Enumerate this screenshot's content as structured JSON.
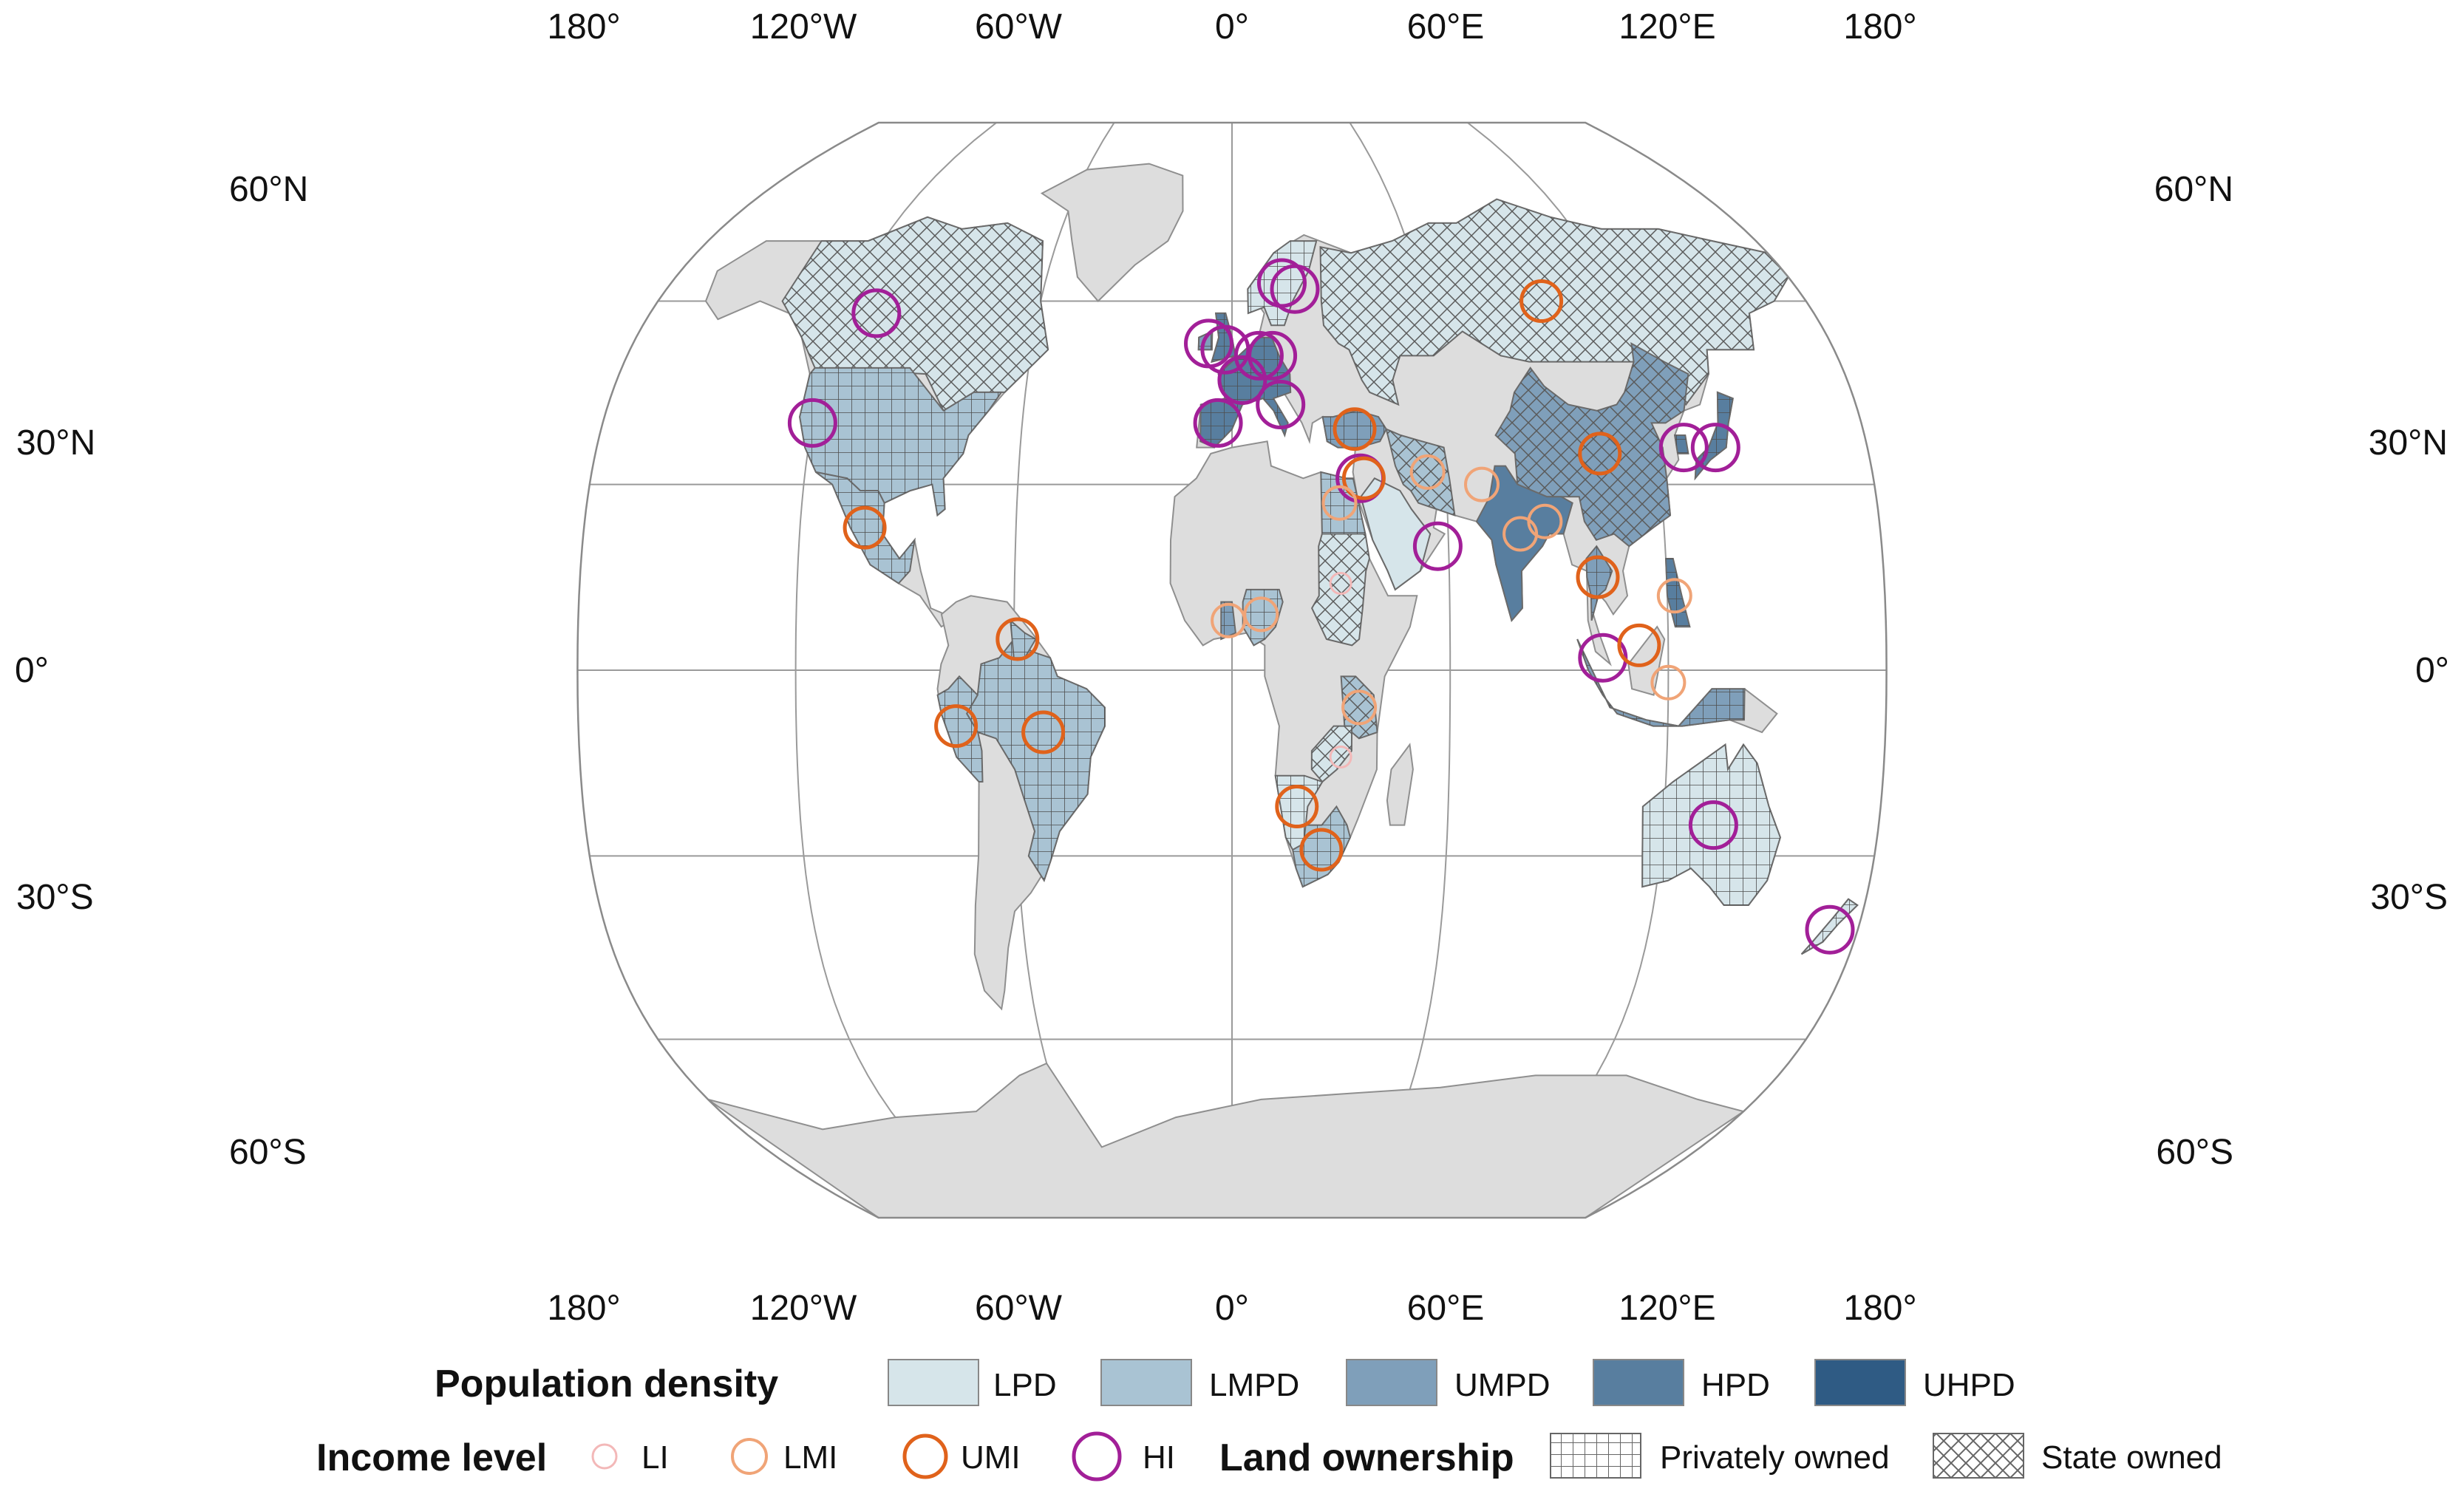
{
  "graticule_labels": {
    "top": [
      "180°",
      "120°W",
      "60°W",
      "0°",
      "60°E",
      "120°E",
      "180°"
    ],
    "bottom": [
      "180°",
      "120°W",
      "60°W",
      "0°",
      "60°E",
      "120°E",
      "180°"
    ],
    "left": [
      "60°N",
      "30°N",
      "0°",
      "30°S",
      "60°S"
    ],
    "right": [
      "60°N",
      "30°N",
      "0°",
      "30°S",
      "60°S"
    ]
  },
  "legend": {
    "density_title": "Population density",
    "density_items": [
      {
        "label": "LPD",
        "color": "#d6e5ea"
      },
      {
        "label": "LMPD",
        "color": "#a9c3d3"
      },
      {
        "label": "UMPD",
        "color": "#7f9fba"
      },
      {
        "label": "HPD",
        "color": "#587e9f"
      },
      {
        "label": "UHPD",
        "color": "#2f5b84"
      }
    ],
    "income_title": "Income level",
    "income_items": [
      {
        "label": "LI",
        "color": "#f3b8b8"
      },
      {
        "label": "LMI",
        "color": "#f0a477"
      },
      {
        "label": "UMI",
        "color": "#e0621b"
      },
      {
        "label": "HI",
        "color": "#a21f98"
      }
    ],
    "ownership_title": "Land ownership",
    "ownership_items": [
      {
        "label": "Privately owned",
        "pattern": "grid"
      },
      {
        "label": "State owned",
        "pattern": "cross"
      }
    ]
  },
  "countries": [
    {
      "name": "Canada",
      "density": "LPD",
      "ownership": "State owned"
    },
    {
      "name": "United States",
      "density": "LMPD",
      "ownership": "Privately owned"
    },
    {
      "name": "Mexico",
      "density": "LMPD",
      "ownership": "Privately owned"
    },
    {
      "name": "Brazil",
      "density": "LMPD",
      "ownership": "Privately owned"
    },
    {
      "name": "Peru",
      "density": "LMPD",
      "ownership": "Privately owned"
    },
    {
      "name": "Russia",
      "density": "LPD",
      "ownership": "State owned"
    },
    {
      "name": "China",
      "density": "UMPD",
      "ownership": "State owned"
    },
    {
      "name": "India",
      "density": "HPD",
      "ownership": "Privately owned"
    },
    {
      "name": "Australia",
      "density": "LPD",
      "ownership": "Privately owned"
    },
    {
      "name": "Sudan",
      "density": "LPD",
      "ownership": "State owned"
    },
    {
      "name": "Egypt",
      "density": "LMPD",
      "ownership": "Privately owned"
    },
    {
      "name": "Nigeria",
      "density": "LMPD",
      "ownership": "Privately owned"
    },
    {
      "name": "Tanzania",
      "density": "LMPD",
      "ownership": "State owned"
    },
    {
      "name": "South Africa",
      "density": "LMPD",
      "ownership": "Privately owned"
    },
    {
      "name": "Namibia",
      "density": "LPD",
      "ownership": "Privately owned"
    },
    {
      "name": "Iran",
      "density": "LMPD",
      "ownership": "State owned"
    },
    {
      "name": "Turkey",
      "density": "UMPD",
      "ownership": "Privately owned"
    },
    {
      "name": "Indonesia",
      "density": "UMPD",
      "ownership": "Privately owned"
    },
    {
      "name": "Thailand",
      "density": "UMPD",
      "ownership": "Privately owned"
    },
    {
      "name": "Japan",
      "density": "HPD",
      "ownership": "Privately owned"
    },
    {
      "name": "South Korea",
      "density": "HPD",
      "ownership": "Privately owned"
    },
    {
      "name": "New Zealand",
      "density": "LPD",
      "ownership": "Privately owned"
    },
    {
      "name": "Western Europe",
      "density": "HPD",
      "ownership": "Privately owned"
    },
    {
      "name": "Scandinavia",
      "density": "LPD",
      "ownership": "Privately owned"
    }
  ],
  "income_markers": [
    {
      "lon": -110,
      "lat": 58,
      "level": "HI"
    },
    {
      "lon": -120,
      "lat": 40,
      "level": "HI"
    },
    {
      "lon": -102,
      "lat": 23,
      "level": "UMI"
    },
    {
      "lon": -59,
      "lat": 5,
      "level": "UMI"
    },
    {
      "lon": -76,
      "lat": -9,
      "level": "UMI"
    },
    {
      "lon": -52,
      "lat": -10,
      "level": "UMI"
    },
    {
      "lon": -2,
      "lat": 52,
      "level": "HI"
    },
    {
      "lon": -7,
      "lat": 53,
      "level": "HI"
    },
    {
      "lon": 8,
      "lat": 51,
      "level": "HI"
    },
    {
      "lon": 12,
      "lat": 51,
      "level": "HI"
    },
    {
      "lon": 3,
      "lat": 47,
      "level": "HI"
    },
    {
      "lon": -4,
      "lat": 40,
      "level": "HI"
    },
    {
      "lon": 14,
      "lat": 43,
      "level": "HI"
    },
    {
      "lon": 16,
      "lat": 63,
      "level": "HI"
    },
    {
      "lon": 20,
      "lat": 62,
      "level": "HI"
    },
    {
      "lon": 97,
      "lat": 60,
      "level": "UMI"
    },
    {
      "lon": 35,
      "lat": 39,
      "level": "UMI"
    },
    {
      "lon": 36,
      "lat": 31,
      "level": "HI"
    },
    {
      "lon": 37,
      "lat": 31,
      "level": "UMI"
    },
    {
      "lon": 55,
      "lat": 32,
      "level": "LMI"
    },
    {
      "lon": 70,
      "lat": 30,
      "level": "LMI"
    },
    {
      "lon": 30,
      "lat": 27,
      "level": "LMI"
    },
    {
      "lon": 57,
      "lat": 20,
      "level": "HI"
    },
    {
      "lon": 30,
      "lat": 14,
      "level": "LI"
    },
    {
      "lon": 8,
      "lat": 9,
      "level": "LMI"
    },
    {
      "lon": -1,
      "lat": 8,
      "level": "LMI"
    },
    {
      "lon": 35,
      "lat": -6,
      "level": "LMI"
    },
    {
      "lon": 30,
      "lat": -14,
      "level": "LI"
    },
    {
      "lon": 18,
      "lat": -22,
      "level": "UMI"
    },
    {
      "lon": 25,
      "lat": -29,
      "level": "UMI"
    },
    {
      "lon": 80,
      "lat": 22,
      "level": "LMI"
    },
    {
      "lon": 87,
      "lat": 24,
      "level": "LMI"
    },
    {
      "lon": 104,
      "lat": 35,
      "level": "UMI"
    },
    {
      "lon": 101,
      "lat": 15,
      "level": "UMI"
    },
    {
      "lon": 102,
      "lat": 2,
      "level": "HI"
    },
    {
      "lon": 112,
      "lat": 4,
      "level": "UMI"
    },
    {
      "lon": 122,
      "lat": 12,
      "level": "LMI"
    },
    {
      "lon": 120,
      "lat": -2,
      "level": "LMI"
    },
    {
      "lon": 128,
      "lat": 36,
      "level": "HI"
    },
    {
      "lon": 137,
      "lat": 36,
      "level": "HI"
    },
    {
      "lon": 134,
      "lat": -25,
      "level": "HI"
    },
    {
      "lon": 172,
      "lat": -42,
      "level": "HI"
    }
  ]
}
